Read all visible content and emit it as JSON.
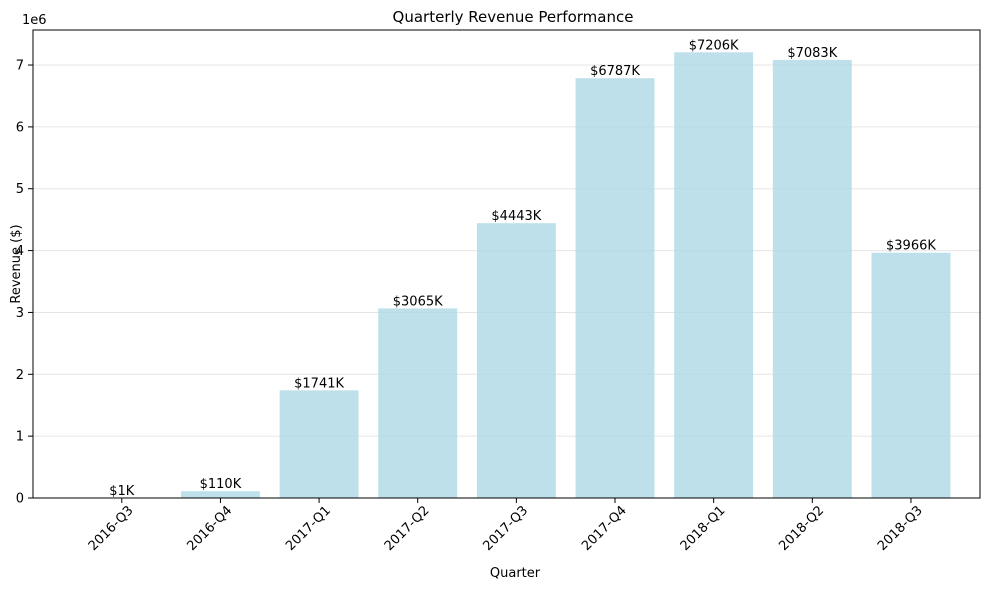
{
  "chart_data": {
    "type": "bar",
    "title": "Quarterly Revenue Performance",
    "xlabel": "Quarter",
    "ylabel": "Revenue ($)",
    "y_offset_label": "1e6",
    "categories": [
      "2016-Q3",
      "2016-Q4",
      "2017-Q1",
      "2017-Q2",
      "2017-Q3",
      "2017-Q4",
      "2018-Q1",
      "2018-Q2",
      "2018-Q3"
    ],
    "values": [
      1000,
      110000,
      1741000,
      3065000,
      4443000,
      6787000,
      7206000,
      7083000,
      3966000
    ],
    "data_labels": [
      "$1K",
      "$110K",
      "$1741K",
      "$3065K",
      "$4443K",
      "$6787K",
      "$7206K",
      "$7083K",
      "$3966K"
    ],
    "ylim": [
      0,
      7566300
    ],
    "yticks": [
      0,
      1000000,
      2000000,
      3000000,
      4000000,
      5000000,
      6000000,
      7000000
    ],
    "ytick_labels": [
      "0",
      "1",
      "2",
      "3",
      "4",
      "5",
      "6",
      "7"
    ],
    "grid": "horizontal",
    "bar_color": "#add8e6",
    "legend": "none"
  }
}
